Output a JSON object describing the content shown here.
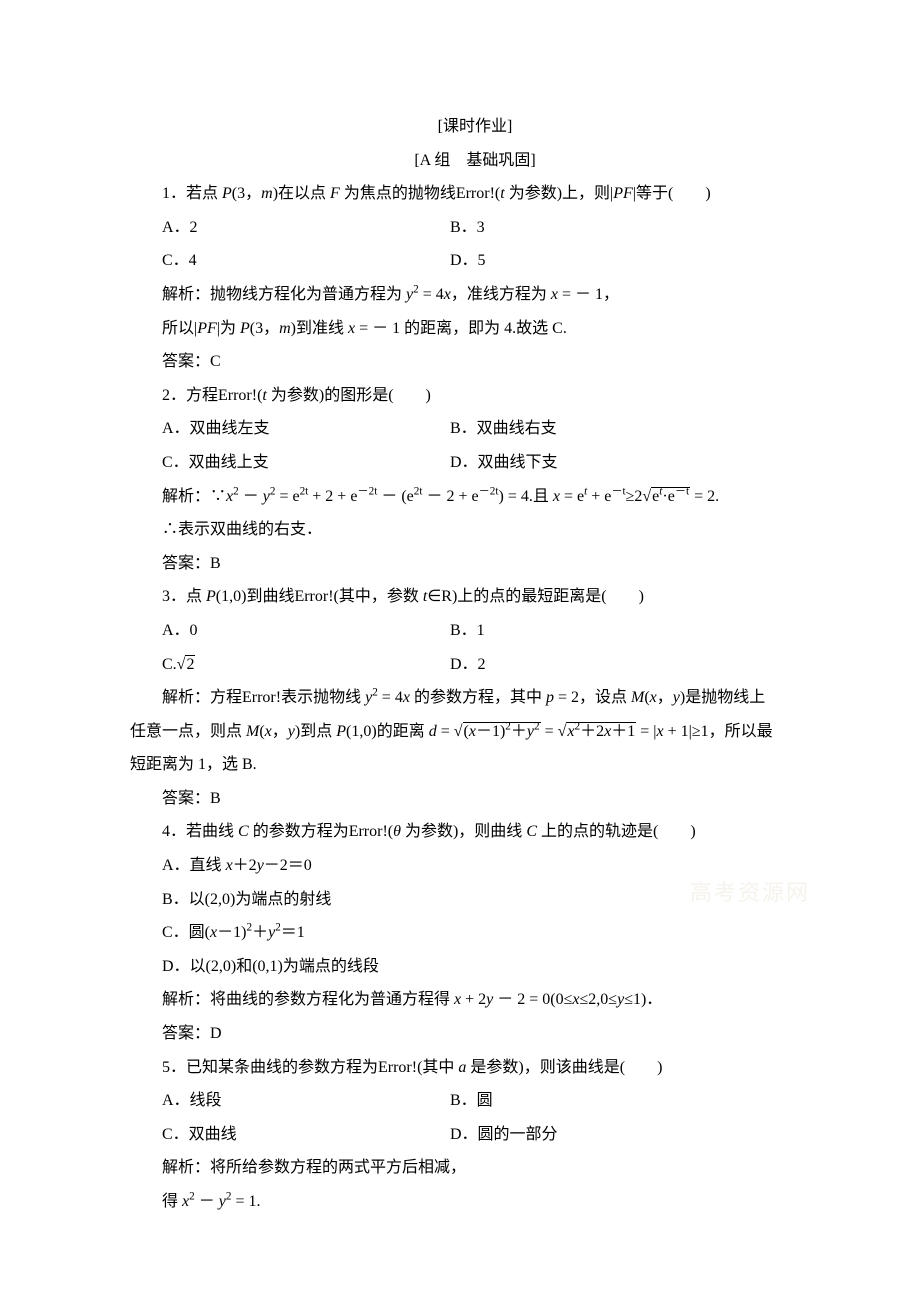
{
  "header": {
    "title1": "[课时作业]",
    "title2": "[A 组　基础巩固]"
  },
  "q1": {
    "stem_pre": "1．若点 ",
    "stem_p": "P",
    "stem_mid1": "(3，",
    "stem_m": "m",
    "stem_mid2": ")在以点 ",
    "stem_f": "F",
    "stem_mid3": " 为焦点的抛物线Error!(",
    "stem_t": "t",
    "stem_mid4": " 为参数)上，则|",
    "stem_pf": "PF",
    "stem_end": "|等于(　　)",
    "a": "A．2",
    "b": "B．3",
    "c": "C．4",
    "d": "D．5",
    "ex_pre": "解析：抛物线方程化为普通方程为 ",
    "ex_y2": "y",
    "ex_mid1": " = 4",
    "ex_x": "x",
    "ex_mid2": "，准线方程为 ",
    "ex_x2": "x",
    "ex_mid3": " = － 1，",
    "ex2_pre": "所以|",
    "ex2_pf": "PF",
    "ex2_mid1": "|为 ",
    "ex2_p": "P",
    "ex2_mid2": "(3，",
    "ex2_m": "m",
    "ex2_mid3": ")到准线 ",
    "ex2_x": "x",
    "ex2_end": " = － 1 的距离，即为 4.故选 C.",
    "ans": "答案：C"
  },
  "q2": {
    "stem_pre": "2．方程Error!(",
    "stem_t": "t",
    "stem_end": " 为参数)的图形是(　　)",
    "a": "A．双曲线左支",
    "b": "B．双曲线右支",
    "c": "C．双曲线上支",
    "d": "D．双曲线下支",
    "ex_pre": "解析：∵",
    "ex_x": "x",
    "ex_sup2a": "2",
    "ex_mid1": " － ",
    "ex_y": "y",
    "ex_sup2b": "2",
    "ex_mid2": " = e",
    "ex_sup2t1": "2t",
    "ex_mid3": " + 2 + e",
    "ex_supn2t1": "－2t",
    "ex_mid4": " － (e",
    "ex_sup2t2": "2t",
    "ex_mid5": " － 2 + e",
    "ex_supn2t2": "－2t",
    "ex_mid6": ") = 4.且 ",
    "ex_x2": "x",
    "ex_mid7": " = e",
    "ex_supt": "t",
    "ex_mid8": " + e",
    "ex_supnt": "－t",
    "ex_mid9": "≥2",
    "ex_sqrt_in": "e",
    "ex_sqrt_supt": "t",
    "ex_sqrt_dot": "·e",
    "ex_sqrt_supnt": "－t",
    "ex_end": " = 2.",
    "ex2": "∴表示双曲线的右支．",
    "ans": "答案：B"
  },
  "q3": {
    "stem_pre": "3．点 ",
    "stem_p": "P",
    "stem_mid1": "(1,0)到曲线Error!(其中，参数 ",
    "stem_t": "t",
    "stem_end": "∈R)上的点的最短距离是(　　)",
    "a": "A．0",
    "b": "B．1",
    "c_pre": "C.",
    "c_sqrt": "2",
    "d": "D．2",
    "ex_pre": "解析：方程Error!表示抛物线 ",
    "ex_y": "y",
    "ex_sup2": "2",
    "ex_mid1": " = 4",
    "ex_x": "x",
    "ex_mid2": " 的参数方程，其中 ",
    "ex_p": "p",
    "ex_mid3": " = 2，设点 ",
    "ex_m": "M",
    "ex_mid4": "(",
    "ex_xv": "x",
    "ex_mid5": "，",
    "ex_yv": "y",
    "ex_end": ")是抛物线上",
    "ex2_pre": "任意一点，则点 ",
    "ex2_m": "M",
    "ex2_mid1": "(",
    "ex2_x": "x",
    "ex2_mid2": "，",
    "ex2_y": "y",
    "ex2_mid3": ")到点 ",
    "ex2_p": "P",
    "ex2_mid4": "(1,0)的距离 ",
    "ex2_d": "d",
    "ex2_mid5": " = ",
    "ex2_sqrt1_pre": "(",
    "ex2_sqrt1_x": "x",
    "ex2_sqrt1_mid": "－1)",
    "ex2_sqrt1_sup": "2",
    "ex2_sqrt1_plus": "＋",
    "ex2_sqrt1_y": "y",
    "ex2_sqrt1_sup2": "2",
    "ex2_mid6": " = ",
    "ex2_sqrt2_x": "x",
    "ex2_sqrt2_sup": "2",
    "ex2_sqrt2_mid": "＋2",
    "ex2_sqrt2_x2": "x",
    "ex2_sqrt2_end": "＋1",
    "ex2_mid7": " = |",
    "ex2_xabs": "x",
    "ex2_end": " + 1|≥1，所以最",
    "ex3": "短距离为 1，选 B.",
    "ans": "答案：B"
  },
  "q4": {
    "stem_pre": "4．若曲线 ",
    "stem_c": "C",
    "stem_mid1": " 的参数方程为Error!(",
    "stem_th": "θ",
    "stem_mid2": " 为参数)，则曲线 ",
    "stem_c2": "C",
    "stem_end": " 上的点的轨迹是(　　)",
    "a_pre": "A．直线 ",
    "a_x": "x",
    "a_mid": "＋2",
    "a_y": "y",
    "a_end": "－2＝0",
    "b": "B．以(2,0)为端点的射线",
    "c_pre": "C．圆(",
    "c_x": "x",
    "c_mid": "－1)",
    "c_sup": "2",
    "c_plus": "＋",
    "c_y": "y",
    "c_sup2": "2",
    "c_end": "＝1",
    "d": "D．以(2,0)和(0,1)为端点的线段",
    "ex_pre": "解析：将曲线的参数方程化为普通方程得 ",
    "ex_x": "x",
    "ex_mid1": " + 2",
    "ex_y": "y",
    "ex_mid2": " － 2 = 0(0≤",
    "ex_x2": "x",
    "ex_mid3": "≤2,0≤",
    "ex_y2": "y",
    "ex_end": "≤1)．",
    "ans": "答案：D"
  },
  "q5": {
    "stem_pre": "5．已知某条曲线的参数方程为Error!(其中 ",
    "stem_a": "a",
    "stem_end": " 是参数)，则该曲线是(　　)",
    "a": "A．线段",
    "b": "B．圆",
    "c": "C．双曲线",
    "d": "D．圆的一部分",
    "ex": "解析：将所给参数方程的两式平方后相减，",
    "ex2_pre": "得 ",
    "ex2_x": "x",
    "ex2_sup": "2",
    "ex2_mid": " － ",
    "ex2_y": "y",
    "ex2_sup2": "2",
    "ex2_end": " = 1."
  },
  "watermark": "高考资源网"
}
